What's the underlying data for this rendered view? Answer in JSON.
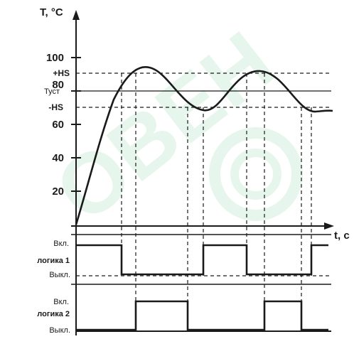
{
  "axes": {
    "y_title": "T, °C",
    "x_title": "t, с",
    "y_ticks": [
      "100",
      "80",
      "60",
      "40",
      "20"
    ],
    "levels": {
      "plus_hs": "+HS",
      "t_set": "Туст",
      "minus_hs": "-HS"
    }
  },
  "logic1": {
    "name": "логика 1",
    "on": "Вкл.",
    "off": "Выкл."
  },
  "logic2": {
    "name": "логика 2",
    "on": "Вкл.",
    "off": "Выкл."
  },
  "watermark": {
    "text": "ОВЕН",
    "color": "#7ad39a"
  },
  "colors": {
    "line": "#1a1a1a"
  }
}
